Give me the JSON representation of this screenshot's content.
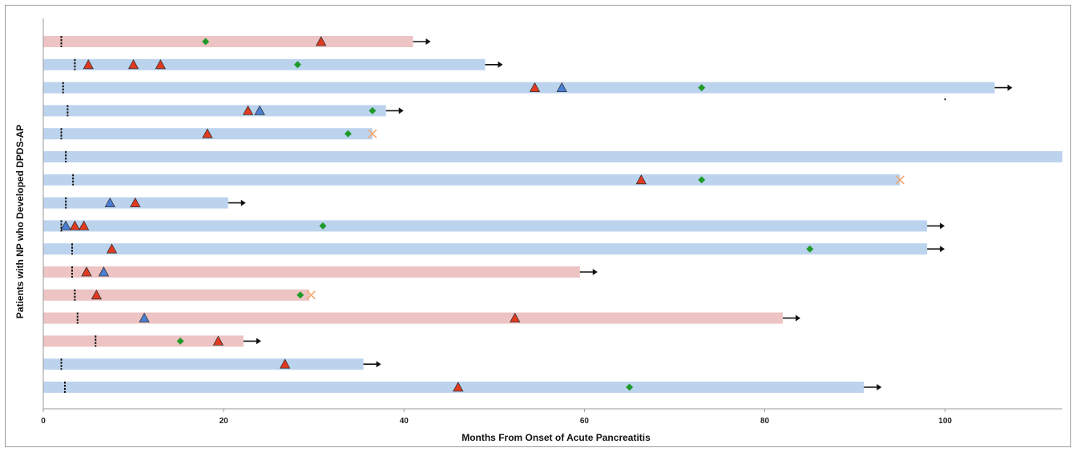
{
  "chart_data": {
    "type": "timeline",
    "title": "",
    "xlabel": "Months From Onset of Acute Pancreatitis",
    "ylabel": "Patients with NP who Developed DPDS-AP",
    "xlim": [
      0,
      113
    ],
    "xticks": [
      0,
      20,
      40,
      60,
      80,
      100
    ],
    "colors": {
      "bar_pink": "#edc3c3",
      "bar_blue": "#bcd3ee",
      "triangle_red": "#e23a1e",
      "triangle_blue": "#4a7fd4",
      "diamond_green": "#1f9a2a",
      "x_orange": "#f2a66a",
      "dashed_tick": "#111111",
      "arrow": "#111111"
    },
    "patients": [
      {
        "bar_color": "pink",
        "end": 41,
        "arrow": true,
        "dash": 2.0,
        "red_triangles": [
          30.8
        ],
        "blue_triangles": [],
        "green_diamonds": [
          18.0
        ],
        "orange_x": []
      },
      {
        "bar_color": "blue",
        "end": 49,
        "arrow": true,
        "dash": 3.5,
        "red_triangles": [
          5.0,
          10.0,
          13.0
        ],
        "blue_triangles": [],
        "green_diamonds": [
          28.2
        ],
        "orange_x": []
      },
      {
        "bar_color": "blue",
        "end": 105.5,
        "arrow": true,
        "dash": 2.2,
        "red_triangles": [
          54.5
        ],
        "blue_triangles": [
          57.5
        ],
        "green_diamonds": [
          73.0
        ],
        "orange_x": []
      },
      {
        "bar_color": "blue",
        "end": 38,
        "arrow": true,
        "dash": 2.7,
        "red_triangles": [
          22.7
        ],
        "blue_triangles": [
          24.0
        ],
        "green_diamonds": [
          36.5
        ],
        "orange_x": []
      },
      {
        "bar_color": "blue",
        "end": 36.5,
        "arrow": false,
        "dash": 2.0,
        "red_triangles": [
          18.2
        ],
        "blue_triangles": [],
        "green_diamonds": [
          33.8
        ],
        "orange_x": [
          36.5
        ]
      },
      {
        "bar_color": "blue",
        "end": 113,
        "arrow": false,
        "dash": 2.5,
        "red_triangles": [],
        "blue_triangles": [],
        "green_diamonds": [],
        "orange_x": []
      },
      {
        "bar_color": "blue",
        "end": 95,
        "arrow": false,
        "dash": 3.3,
        "red_triangles": [
          66.3
        ],
        "blue_triangles": [],
        "green_diamonds": [
          73.0
        ],
        "orange_x": [
          95.0
        ]
      },
      {
        "bar_color": "blue",
        "end": 20.5,
        "arrow": true,
        "dash": 2.5,
        "red_triangles": [
          10.2
        ],
        "blue_triangles": [
          7.4
        ],
        "green_diamonds": [],
        "orange_x": []
      },
      {
        "bar_color": "blue",
        "end": 98,
        "arrow": true,
        "dash": 2.0,
        "red_triangles": [
          3.5,
          4.5
        ],
        "blue_triangles": [
          2.5
        ],
        "green_diamonds": [
          31.0
        ],
        "orange_x": []
      },
      {
        "bar_color": "blue",
        "end": 98,
        "arrow": true,
        "dash": 3.2,
        "red_triangles": [
          7.6
        ],
        "blue_triangles": [],
        "green_diamonds": [
          85.0
        ],
        "orange_x": []
      },
      {
        "bar_color": "pink",
        "end": 59.5,
        "arrow": true,
        "dash": 3.2,
        "red_triangles": [
          4.8
        ],
        "blue_triangles": [
          6.7
        ],
        "green_diamonds": [],
        "orange_x": []
      },
      {
        "bar_color": "pink",
        "end": 29.5,
        "arrow": false,
        "dash": 3.5,
        "red_triangles": [
          5.9
        ],
        "blue_triangles": [],
        "green_diamonds": [
          28.5
        ],
        "orange_x": [
          29.7
        ]
      },
      {
        "bar_color": "pink",
        "end": 82,
        "arrow": true,
        "dash": 3.8,
        "red_triangles": [
          52.3
        ],
        "blue_triangles": [
          11.2
        ],
        "green_diamonds": [],
        "orange_x": []
      },
      {
        "bar_color": "pink",
        "end": 22.2,
        "arrow": true,
        "dash": 5.8,
        "red_triangles": [
          19.4
        ],
        "blue_triangles": [],
        "green_diamonds": [
          15.2
        ],
        "orange_x": []
      },
      {
        "bar_color": "blue",
        "end": 35.5,
        "arrow": true,
        "dash": 2.0,
        "red_triangles": [
          26.8
        ],
        "blue_triangles": [],
        "green_diamonds": [],
        "orange_x": []
      },
      {
        "bar_color": "blue",
        "end": 91,
        "arrow": true,
        "dash": 2.4,
        "red_triangles": [
          46.0
        ],
        "blue_triangles": [],
        "green_diamonds": [
          65.0
        ],
        "orange_x": []
      }
    ],
    "stray_points": [
      {
        "x": 100.0,
        "row_offset": 2.5
      }
    ]
  }
}
